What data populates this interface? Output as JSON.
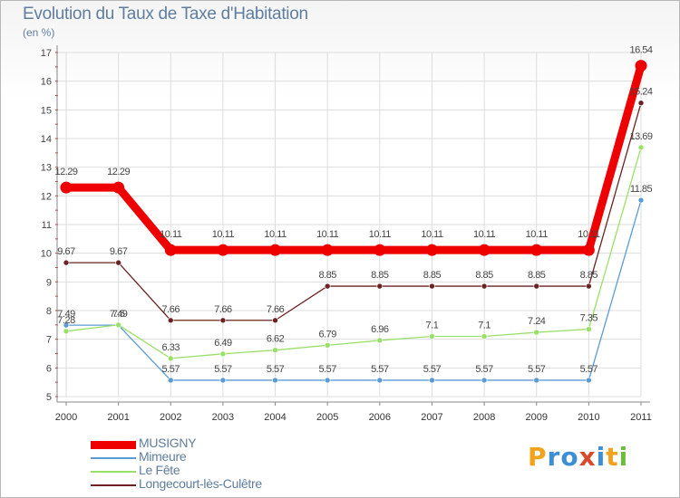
{
  "title": "Evolution du Taux de Taxe d'Habitation",
  "subtitle": "(en %)",
  "logo": {
    "text": "Proxiti",
    "colors": [
      "#f2a21b",
      "#3c8fd6",
      "#3c8fd6",
      "#d94a2c",
      "#3c8fd6",
      "#f2a21b",
      "#6abf3a"
    ]
  },
  "chart_data": {
    "type": "line",
    "x": [
      "2000",
      "2001",
      "2002",
      "2003",
      "2004",
      "2005",
      "2006",
      "2007",
      "2008",
      "2009",
      "2010",
      "2011"
    ],
    "ylim": [
      5,
      17
    ],
    "yticks": [
      "5",
      "6",
      "7",
      "8",
      "9",
      "10",
      "11",
      "12",
      "13",
      "14",
      "15",
      "16",
      "17"
    ],
    "grid": true,
    "legend_position": "bottom-left",
    "series": [
      {
        "name": "MUSIGNY",
        "color": "#ee0000",
        "values": [
          12.29,
          12.29,
          10.11,
          10.11,
          10.11,
          10.11,
          10.11,
          10.11,
          10.11,
          10.11,
          10.11,
          16.54
        ],
        "labels": [
          "12.29",
          "12.29",
          "10.11",
          "10.11",
          "10.11",
          "10.11",
          "10.11",
          "10.11",
          "10.11",
          "10.11",
          "10.11",
          "16.54"
        ]
      },
      {
        "name": "Mimeure",
        "color": "#5b9bd5",
        "values": [
          7.49,
          7.49,
          5.57,
          5.57,
          5.57,
          5.57,
          5.57,
          5.57,
          5.57,
          5.57,
          5.57,
          11.85
        ],
        "labels": [
          "7.49",
          "7.49",
          "5.57",
          "5.57",
          "5.57",
          "5.57",
          "5.57",
          "5.57",
          "5.57",
          "5.57",
          "5.57",
          "11.85"
        ]
      },
      {
        "name": "Le Fête",
        "color": "#99e069",
        "values": [
          7.28,
          7.5,
          6.33,
          6.49,
          6.62,
          6.79,
          6.96,
          7.1,
          7.1,
          7.24,
          7.35,
          13.69
        ],
        "labels": [
          "7.28",
          "7.5",
          "6.33",
          "6.49",
          "6.62",
          "6.79",
          "6.96",
          "7.1",
          "7.1",
          "7.24",
          "7.35",
          "13.69"
        ]
      },
      {
        "name": "Longecourt-lès-Culêtre",
        "color": "#6b2222",
        "values": [
          9.67,
          9.67,
          7.66,
          7.66,
          7.66,
          8.85,
          8.85,
          8.85,
          8.85,
          8.85,
          8.85,
          15.24
        ],
        "labels": [
          "9.67",
          "9.67",
          "7.66",
          "7.66",
          "7.66",
          "8.85",
          "8.85",
          "8.85",
          "8.85",
          "8.85",
          "8.85",
          "15.24"
        ]
      }
    ]
  }
}
